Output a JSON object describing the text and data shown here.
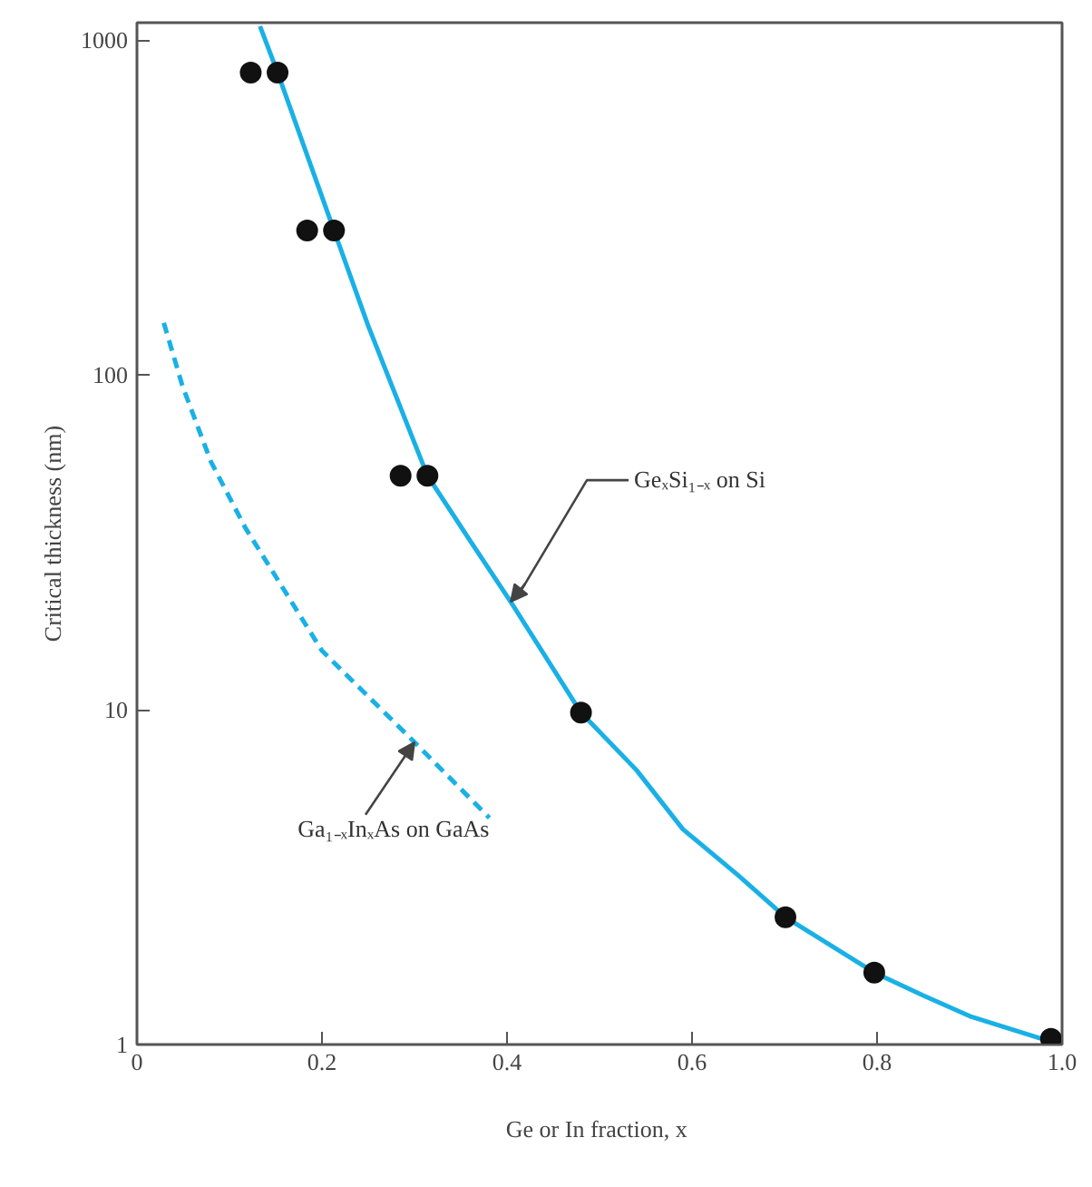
{
  "chart_data": {
    "type": "scatter",
    "xlabel": "Ge or In  fraction, x",
    "ylabel": "Critical thickness (nm)",
    "xlim": [
      0,
      1.0
    ],
    "ylim": [
      1,
      1127
    ],
    "log": "y",
    "grid": false,
    "xticks": [
      0,
      0.2,
      0.4,
      0.6,
      0.8,
      {
        "value": 1.0,
        "label": "1.0"
      }
    ],
    "yticks": [
      1,
      10,
      100,
      1000
    ],
    "series": [
      {
        "marker": "circle",
        "color": "#111111",
        "x": [
          0.123,
          0.152,
          0.184,
          0.213,
          0.285,
          0.314,
          0.48,
          0.701,
          0.797,
          0.988
        ],
        "values": [
          800,
          800,
          270,
          270,
          50,
          50,
          9.8,
          2.4,
          1.64,
          1.04
        ]
      },
      {
        "type": "line",
        "line_style": "solid",
        "color": "#1ab0e6",
        "x": [
          0.133,
          0.152,
          0.213,
          0.25,
          0.314,
          0.36,
          0.404,
          0.48,
          0.54,
          0.59,
          0.65,
          0.701,
          0.797,
          0.85,
          0.902,
          0.988
        ],
        "values": [
          1100,
          800,
          270,
          140,
          50,
          32,
          21,
          9.8,
          6.6,
          4.4,
          3.2,
          2.4,
          1.64,
          1.4,
          1.21,
          1.02
        ]
      },
      {
        "type": "line",
        "line_style": "dashed",
        "color": "#1ab0e6",
        "x": [
          0.029,
          0.049,
          0.08,
          0.117,
          0.2,
          0.3,
          0.381
        ],
        "values": [
          143,
          93,
          55,
          35,
          15,
          8.0,
          4.75
        ]
      }
    ],
    "annotations": [
      {
        "text": "GeₓSi₁₋ₓ on Si",
        "x": 0.404,
        "y": 21
      },
      {
        "text": "Ga₁₋ₓInₓAs on  GaAs",
        "x": 0.3,
        "y": 8.0
      }
    ]
  }
}
